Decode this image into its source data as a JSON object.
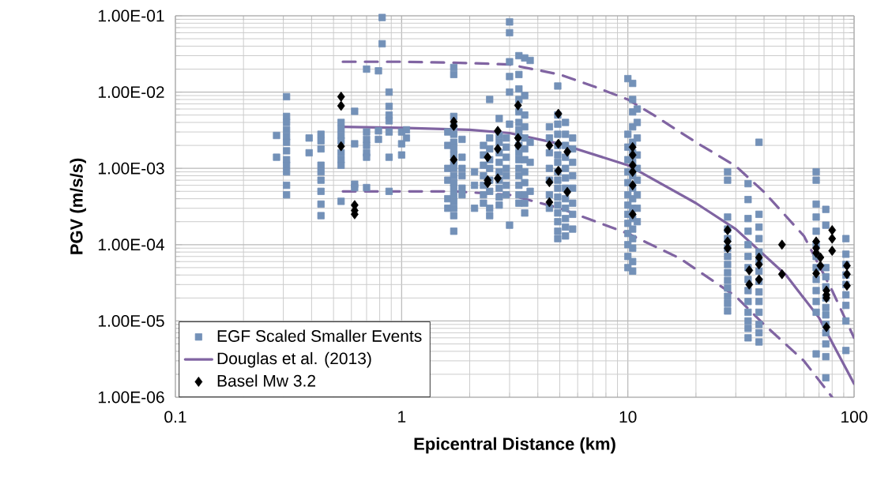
{
  "chart_data": {
    "type": "scatter",
    "xlabel": "Epicentral Distance (km)",
    "ylabel": "PGV (m/s/s)",
    "log": "xy",
    "grid": true,
    "legend": "bottom left",
    "xlim": [
      0.1,
      100
    ],
    "xticks": [
      0.1,
      1,
      10,
      100
    ],
    "ylim": [
      1e-06,
      0.1
    ],
    "yticks": [
      {
        "value": 1e-06,
        "label": "1.00E-06"
      },
      {
        "value": 1e-05,
        "label": "1.00E-05"
      },
      {
        "value": 0.0001,
        "label": "1.00E-04"
      },
      {
        "value": 0.001,
        "label": "1.00E-03"
      },
      {
        "value": 0.01,
        "label": "1.00E-02"
      },
      {
        "value": 0.1,
        "label": "1.00E-01"
      }
    ],
    "series": [
      {
        "name": "EGF Scaled Smaller Events",
        "marker": "square",
        "color": "#7391b8",
        "x": [
          0.28,
          0.28,
          0.31,
          0.31,
          0.31,
          0.31,
          0.31,
          0.31,
          0.31,
          0.31,
          0.31,
          0.31,
          0.31,
          0.31,
          0.39,
          0.39,
          0.44,
          0.44,
          0.44,
          0.44,
          0.44,
          0.44,
          0.44,
          0.44,
          0.44,
          0.54,
          0.54,
          0.54,
          0.54,
          0.54,
          0.54,
          0.54,
          0.54,
          0.62,
          0.62,
          0.62,
          0.62,
          0.7,
          0.7,
          0.7,
          0.7,
          0.7,
          0.7,
          0.7,
          0.79,
          0.79,
          0.79,
          0.82,
          0.82,
          0.88,
          0.88,
          0.88,
          0.88,
          0.88,
          0.88,
          0.88,
          1.0,
          1.0,
          1.0,
          1.05,
          1.05,
          1.6,
          1.6,
          1.6,
          1.6,
          1.6,
          1.6,
          1.7,
          1.7,
          1.7,
          1.7,
          1.7,
          1.7,
          1.7,
          1.7,
          1.7,
          1.7,
          1.7,
          1.7,
          1.7,
          1.7,
          1.7,
          1.7,
          1.7,
          1.7,
          1.85,
          1.85,
          1.85,
          1.85,
          1.85,
          1.85,
          2.1,
          2.1,
          2.1,
          2.3,
          2.3,
          2.3,
          2.3,
          2.3,
          2.3,
          2.3,
          2.45,
          2.45,
          2.45,
          2.45,
          2.45,
          2.45,
          2.45,
          2.45,
          2.45,
          2.7,
          2.7,
          2.7,
          2.7,
          2.7,
          2.7,
          2.7,
          2.7,
          2.7,
          2.7,
          2.9,
          2.9,
          2.9,
          2.9,
          2.9,
          2.9,
          2.9,
          3.0,
          3.0,
          3.0,
          3.0,
          3.0,
          3.0,
          3.0,
          3.3,
          3.3,
          3.3,
          3.3,
          3.3,
          3.3,
          3.3,
          3.3,
          3.3,
          3.3,
          3.3,
          3.3,
          3.3,
          3.3,
          3.3,
          3.3,
          3.5,
          3.5,
          3.5,
          3.5,
          3.5,
          3.5,
          3.5,
          3.5,
          3.5,
          3.5,
          3.5,
          3.5,
          3.7,
          3.7,
          3.7,
          3.7,
          4.5,
          4.5,
          4.5,
          4.5,
          4.5,
          4.5,
          4.5,
          4.9,
          4.9,
          4.9,
          4.9,
          4.9,
          4.9,
          4.9,
          4.9,
          4.9,
          4.9,
          4.9,
          4.9,
          4.9,
          4.9,
          4.9,
          4.9,
          5.3,
          5.3,
          5.3,
          5.3,
          5.3,
          5.3,
          5.3,
          5.3,
          5.3,
          5.3,
          5.3,
          5.3,
          5.7,
          5.7,
          5.7,
          5.7,
          5.7,
          5.7,
          5.7,
          5.7,
          10.0,
          10.0,
          10.0,
          10.0,
          10.0,
          10.0,
          10.0,
          10.0,
          10.0,
          10.0,
          10.0,
          10.0,
          10.0,
          10.0,
          10.5,
          10.5,
          10.5,
          10.5,
          10.5,
          10.5,
          10.5,
          10.5,
          10.5,
          10.5,
          10.5,
          10.5,
          10.5,
          10.5,
          10.5,
          10.5,
          10.5,
          11,
          11,
          11,
          11,
          11,
          11,
          11,
          11,
          11,
          27.6,
          27.6,
          27.6,
          27.6,
          27.6,
          27.6,
          27.6,
          27.6,
          27.6,
          27.6,
          27.6,
          27.6,
          27.6,
          27.6,
          34,
          34,
          34,
          34,
          34,
          34,
          34,
          34,
          34,
          34,
          34,
          34,
          34,
          34,
          38,
          38,
          38,
          38,
          38,
          38,
          38,
          38,
          38,
          38,
          38,
          38,
          38,
          38,
          68,
          68,
          68,
          68,
          68,
          68,
          68,
          68,
          68,
          68,
          68,
          68,
          68,
          75,
          75,
          75,
          75,
          75,
          75,
          75,
          75,
          75,
          75,
          75,
          75,
          75,
          92,
          92,
          92,
          92,
          92,
          92,
          92,
          92,
          92
        ],
        "values": [
          0.0027,
          0.0014,
          0.0087,
          0.0048,
          0.004,
          0.0032,
          0.0026,
          0.0022,
          0.0017,
          0.0013,
          0.0011,
          0.0009,
          0.0006,
          0.00045,
          0.0025,
          0.0016,
          0.0028,
          0.0023,
          0.0018,
          0.0011,
          0.0009,
          0.0007,
          0.0005,
          0.00034,
          0.00024,
          0.004,
          0.0033,
          0.0027,
          0.0023,
          0.0016,
          0.0013,
          0.0011,
          0.00037,
          0.0056,
          0.0021,
          0.00062,
          0.00056,
          0.02,
          0.003,
          0.0024,
          0.002,
          0.0016,
          0.0014,
          0.00056,
          0.019,
          0.0031,
          0.0024,
          0.095,
          0.043,
          0.01,
          0.0065,
          0.005,
          0.0042,
          0.003,
          0.0014,
          0.0005,
          0.003,
          0.0021,
          0.0015,
          0.0032,
          0.0025,
          0.003,
          0.002,
          0.001,
          0.0007,
          0.0004,
          0.0003,
          0.021,
          0.017,
          0.0048,
          0.0035,
          0.0028,
          0.0022,
          0.0018,
          0.0015,
          0.0012,
          0.001,
          0.0008,
          0.00065,
          0.00055,
          0.00045,
          0.00037,
          0.0003,
          0.00024,
          0.00015,
          0.0024,
          0.0014,
          0.001,
          0.0008,
          0.00055,
          0.00045,
          0.0009,
          0.0006,
          0.0003,
          0.002,
          0.0015,
          0.0011,
          0.0008,
          0.0006,
          0.00045,
          0.00035,
          0.008,
          0.0025,
          0.0018,
          0.0013,
          0.001,
          0.0007,
          0.0005,
          0.0003,
          0.00024,
          0.0045,
          0.0027,
          0.0022,
          0.0016,
          0.0012,
          0.0009,
          0.0007,
          0.00055,
          0.00042,
          0.00033,
          0.0025,
          0.0019,
          0.0014,
          0.001,
          0.0008,
          0.0006,
          0.00045,
          0.083,
          0.06,
          0.025,
          0.016,
          0.01,
          0.0038,
          0.00018,
          0.03,
          0.017,
          0.011,
          0.008,
          0.0055,
          0.004,
          0.0032,
          0.0026,
          0.002,
          0.0016,
          0.0013,
          0.001,
          0.0008,
          0.0006,
          0.00045,
          0.00035,
          0.028,
          0.009,
          0.005,
          0.0035,
          0.0025,
          0.0018,
          0.0013,
          0.0009,
          0.00065,
          0.00045,
          0.00035,
          0.00026,
          0.026,
          0.0022,
          0.0012,
          0.0005,
          0.0035,
          0.0025,
          0.0016,
          0.001,
          0.0007,
          0.00045,
          0.0003,
          0.012,
          0.005,
          0.0038,
          0.0028,
          0.002,
          0.0015,
          0.0012,
          0.0009,
          0.0007,
          0.00055,
          0.00042,
          0.00033,
          0.00026,
          0.0002,
          0.00015,
          0.00012,
          0.004,
          0.0028,
          0.002,
          0.0014,
          0.001,
          0.00075,
          0.00055,
          0.0004,
          0.0003,
          0.00022,
          0.00017,
          0.00013,
          0.0025,
          0.0018,
          0.0012,
          0.0008,
          0.00055,
          0.00035,
          0.00025,
          0.00016,
          0.015,
          0.0028,
          0.0019,
          0.0013,
          0.0009,
          0.00065,
          0.00045,
          0.00033,
          0.00025,
          0.00019,
          0.00014,
          0.0001,
          7e-05,
          5e-05,
          0.013,
          0.008,
          0.0055,
          0.0035,
          0.0022,
          0.0016,
          0.0012,
          0.0008,
          0.00055,
          0.0004,
          0.0003,
          0.00022,
          0.00016,
          0.00012,
          9e-05,
          6e-05,
          4.5e-05,
          0.006,
          0.004,
          0.0025,
          0.0015,
          0.001,
          0.0007,
          0.00045,
          0.0003,
          0.0002,
          0.0009,
          0.0007,
          0.00023,
          0.00016,
          0.00012,
          9e-05,
          7e-05,
          5.5e-05,
          4.3e-05,
          3.4e-05,
          2.7e-05,
          2.1e-05,
          1.7e-05,
          1.35e-05,
          0.00063,
          0.00039,
          0.00022,
          0.00015,
          0.0001,
          7e-05,
          5e-05,
          3.5e-05,
          2.5e-05,
          1.8e-05,
          1.3e-05,
          1e-05,
          8e-06,
          6e-06,
          0.0022,
          0.00025,
          0.00017,
          0.00012,
          8e-05,
          6e-05,
          4.5e-05,
          3.3e-05,
          2.4e-05,
          1.8e-05,
          1.3e-05,
          9e-06,
          7e-06,
          5.3e-06,
          0.0009,
          0.0007,
          0.00034,
          0.00023,
          0.00015,
          0.0001,
          7e-05,
          5e-05,
          3.5e-05,
          2.5e-05,
          1.8e-05,
          1.3e-05,
          3.7e-06,
          0.00029,
          0.00018,
          5e-05,
          3.8e-05,
          2.8e-05,
          2e-05,
          1.5e-05,
          1.2e-05,
          9e-06,
          7e-06,
          5e-06,
          3.4e-06,
          1.8e-06,
          0.00012,
          7.5e-05,
          5.5e-05,
          4e-05,
          3e-05,
          2.2e-05,
          1.6e-05,
          1e-05,
          4.1e-06
        ]
      },
      {
        "name": "Douglas et al. (2013)",
        "type": "line",
        "marker": "none",
        "line_style": "solid",
        "color": "#8064a2",
        "x": [
          0.55,
          1,
          2,
          3,
          5,
          10,
          20,
          30,
          50,
          70,
          100
        ],
        "values": [
          0.0035,
          0.0034,
          0.0032,
          0.0029,
          0.0021,
          0.0011,
          0.00035,
          0.00016,
          4e-05,
          1.1e-05,
          1.5e-06
        ]
      },
      {
        "type": "line",
        "marker": "none",
        "line_style": "dashed",
        "color": "#8064a2",
        "x": [
          0.55,
          1,
          2,
          3,
          5,
          7,
          10,
          13,
          20,
          30,
          40,
          60,
          80,
          100
        ],
        "values": [
          0.025,
          0.025,
          0.024,
          0.023,
          0.017,
          0.012,
          0.008,
          0.005,
          0.0022,
          0.00107,
          0.00049,
          0.00013,
          2.5e-05,
          6e-06
        ]
      },
      {
        "type": "line",
        "marker": "none",
        "line_style": "dashed",
        "color": "#8064a2",
        "x": [
          0.55,
          1,
          1.7,
          3,
          5,
          10,
          17,
          30,
          40,
          60,
          80
        ],
        "values": [
          0.0005,
          0.0005,
          0.0005,
          0.00045,
          0.0003,
          0.00014,
          6.6e-05,
          2.1e-05,
          9e-06,
          3e-06,
          1e-06
        ]
      },
      {
        "name": "Basel Mw 3.2",
        "marker": "diamond",
        "color": "#000000",
        "x": [
          0.54,
          0.54,
          0.54,
          0.62,
          0.62,
          0.62,
          1.7,
          1.7,
          1.7,
          2.4,
          2.4,
          2.4,
          2.66,
          2.66,
          2.66,
          3.27,
          3.27,
          3.27,
          4.5,
          4.5,
          4.5,
          4.93,
          4.93,
          4.93,
          5.4,
          5.4,
          10.5,
          10.5,
          10.5,
          10.5,
          10.5,
          10.5,
          27.6,
          27.6,
          27.6,
          34.4,
          34.4,
          38,
          38,
          38,
          48,
          48,
          68,
          68,
          68,
          68,
          71,
          71,
          75.5,
          75.5,
          75.5,
          75.5,
          80,
          80,
          80,
          93,
          93,
          93
        ],
        "values": [
          0.0087,
          0.0066,
          0.00195,
          0.00033,
          0.00028,
          0.00025,
          0.0041,
          0.0036,
          0.0013,
          0.0014,
          0.0007,
          0.00064,
          0.0031,
          0.0018,
          0.00074,
          0.0067,
          0.0025,
          0.002,
          0.002,
          0.00066,
          0.00036,
          0.0052,
          0.0021,
          0.00093,
          0.00165,
          0.00049,
          0.0019,
          0.0015,
          0.0011,
          0.0009,
          0.0006,
          0.00025,
          0.000155,
          0.00011,
          9e-05,
          4.6e-05,
          3e-05,
          6.8e-05,
          5.5e-05,
          3.5e-05,
          0.0001,
          4.1e-05,
          0.00011,
          9e-05,
          7.8e-05,
          4.2e-05,
          6.8e-05,
          5.3e-05,
          2.5e-05,
          2.2e-05,
          2e-05,
          8.3e-06,
          0.000155,
          0.00012,
          8.3e-05,
          5.3e-05,
          4.1e-05,
          2.9e-05
        ]
      }
    ]
  }
}
